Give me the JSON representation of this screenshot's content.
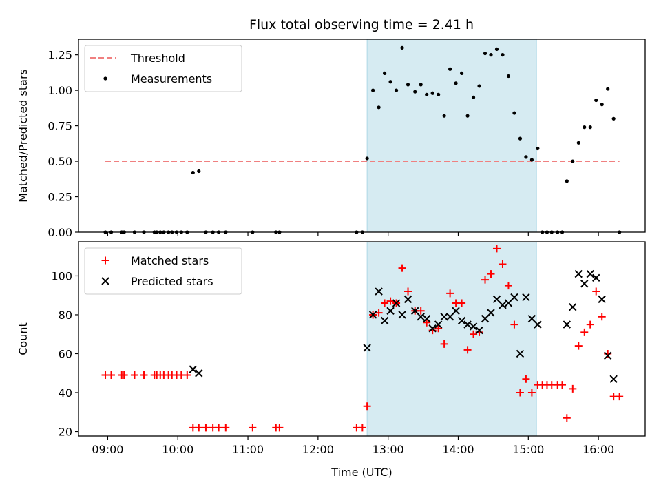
{
  "title": "Flux total observing time = 2.41 h",
  "colors": {
    "threshold": "#f08080",
    "measurements": "#000000",
    "matched": "#ff0000",
    "predicted": "#000000",
    "span": "#add8e6"
  },
  "chart_data": [
    {
      "type": "scatter",
      "panel": "top",
      "ylabel": "Matched/Predicted stars",
      "xlim": [
        "08:35",
        "16:40"
      ],
      "ylim": [
        0,
        1.36
      ],
      "yticks": [
        "0.00",
        "0.25",
        "0.50",
        "0.75",
        "1.00",
        "1.25"
      ],
      "highlight_span": [
        "12:42",
        "15:07"
      ],
      "legend": {
        "placement": "upper-left",
        "entries": [
          "Threshold",
          "Measurements"
        ]
      },
      "threshold": {
        "name": "Threshold",
        "y": 0.5,
        "x_range": [
          "08:58",
          "16:18"
        ]
      },
      "series": [
        {
          "name": "Measurements",
          "points": [
            [
              "08:58",
              0
            ],
            [
              "09:03",
              0
            ],
            [
              "09:12",
              0
            ],
            [
              "09:14",
              0
            ],
            [
              "09:23",
              0
            ],
            [
              "09:31",
              0
            ],
            [
              "09:40",
              0
            ],
            [
              "09:42",
              0
            ],
            [
              "09:45",
              0
            ],
            [
              "09:48",
              0
            ],
            [
              "09:52",
              0
            ],
            [
              "09:55",
              0
            ],
            [
              "09:59",
              0
            ],
            [
              "10:03",
              0
            ],
            [
              "10:08",
              0
            ],
            [
              "10:13",
              0.42
            ],
            [
              "10:18",
              0.43
            ],
            [
              "10:24",
              0
            ],
            [
              "10:30",
              0
            ],
            [
              "10:35",
              0
            ],
            [
              "10:41",
              0
            ],
            [
              "11:04",
              0
            ],
            [
              "11:24",
              0
            ],
            [
              "11:27",
              0
            ],
            [
              "12:33",
              0
            ],
            [
              "12:38",
              0
            ],
            [
              "12:42",
              0.52
            ],
            [
              "12:47",
              1.0
            ],
            [
              "12:52",
              0.88
            ],
            [
              "12:57",
              1.12
            ],
            [
              "13:02",
              1.06
            ],
            [
              "13:07",
              1.0
            ],
            [
              "13:12",
              1.3
            ],
            [
              "13:17",
              1.04
            ],
            [
              "13:23",
              0.99
            ],
            [
              "13:28",
              1.04
            ],
            [
              "13:33",
              0.97
            ],
            [
              "13:38",
              0.98
            ],
            [
              "13:43",
              0.97
            ],
            [
              "13:48",
              0.82
            ],
            [
              "13:53",
              1.15
            ],
            [
              "13:58",
              1.05
            ],
            [
              "14:03",
              1.12
            ],
            [
              "14:08",
              0.82
            ],
            [
              "14:13",
              0.95
            ],
            [
              "14:18",
              1.03
            ],
            [
              "14:23",
              1.26
            ],
            [
              "14:28",
              1.25
            ],
            [
              "14:33",
              1.29
            ],
            [
              "14:38",
              1.25
            ],
            [
              "14:43",
              1.1
            ],
            [
              "14:48",
              0.84
            ],
            [
              "14:53",
              0.66
            ],
            [
              "14:58",
              0.53
            ],
            [
              "15:03",
              0.51
            ],
            [
              "15:08",
              0.59
            ],
            [
              "15:12",
              0
            ],
            [
              "15:16",
              0
            ],
            [
              "15:20",
              0
            ],
            [
              "15:25",
              0
            ],
            [
              "15:29",
              0
            ],
            [
              "15:33",
              0.36
            ],
            [
              "15:38",
              0.5
            ],
            [
              "15:43",
              0.63
            ],
            [
              "15:48",
              0.74
            ],
            [
              "15:53",
              0.74
            ],
            [
              "15:58",
              0.93
            ],
            [
              "16:03",
              0.9
            ],
            [
              "16:08",
              1.01
            ],
            [
              "16:13",
              0.8
            ],
            [
              "16:18",
              0
            ]
          ]
        }
      ]
    },
    {
      "type": "scatter",
      "panel": "bottom",
      "xlabel": "Time (UTC)",
      "ylabel": "Count",
      "xlim": [
        "08:35",
        "16:40"
      ],
      "ylim": [
        17.7,
        117.5
      ],
      "xticks": [
        "09:00",
        "10:00",
        "11:00",
        "12:00",
        "13:00",
        "14:00",
        "15:00",
        "16:00"
      ],
      "yticks": [
        "20",
        "40",
        "60",
        "80",
        "100"
      ],
      "highlight_span": [
        "12:42",
        "15:07"
      ],
      "legend": {
        "placement": "upper-left",
        "entries": [
          "Matched stars",
          "Predicted stars"
        ]
      },
      "series": [
        {
          "name": "Matched stars",
          "marker": "+",
          "points": [
            [
              "08:58",
              49
            ],
            [
              "09:03",
              49
            ],
            [
              "09:12",
              49
            ],
            [
              "09:14",
              49
            ],
            [
              "09:23",
              49
            ],
            [
              "09:31",
              49
            ],
            [
              "09:40",
              49
            ],
            [
              "09:42",
              49
            ],
            [
              "09:45",
              49
            ],
            [
              "09:48",
              49
            ],
            [
              "09:52",
              49
            ],
            [
              "09:55",
              49
            ],
            [
              "09:59",
              49
            ],
            [
              "10:03",
              49
            ],
            [
              "10:08",
              49
            ],
            [
              "10:13",
              22
            ],
            [
              "10:18",
              22
            ],
            [
              "10:24",
              22
            ],
            [
              "10:30",
              22
            ],
            [
              "10:35",
              22
            ],
            [
              "10:41",
              22
            ],
            [
              "11:04",
              22
            ],
            [
              "11:24",
              22
            ],
            [
              "11:27",
              22
            ],
            [
              "12:33",
              22
            ],
            [
              "12:38",
              22
            ],
            [
              "12:42",
              33
            ],
            [
              "12:47",
              80
            ],
            [
              "12:52",
              81
            ],
            [
              "12:57",
              86
            ],
            [
              "13:02",
              87
            ],
            [
              "13:07",
              86
            ],
            [
              "13:12",
              104
            ],
            [
              "13:17",
              92
            ],
            [
              "13:23",
              82
            ],
            [
              "13:28",
              82
            ],
            [
              "13:33",
              76
            ],
            [
              "13:38",
              72
            ],
            [
              "13:43",
              73
            ],
            [
              "13:48",
              65
            ],
            [
              "13:53",
              91
            ],
            [
              "13:58",
              86
            ],
            [
              "14:03",
              86
            ],
            [
              "14:08",
              62
            ],
            [
              "14:13",
              70
            ],
            [
              "14:18",
              71
            ],
            [
              "14:23",
              98
            ],
            [
              "14:28",
              101
            ],
            [
              "14:33",
              114
            ],
            [
              "14:38",
              106
            ],
            [
              "14:43",
              95
            ],
            [
              "14:48",
              75
            ],
            [
              "14:53",
              40
            ],
            [
              "14:58",
              47
            ],
            [
              "15:03",
              40
            ],
            [
              "15:08",
              44
            ],
            [
              "15:12",
              44
            ],
            [
              "15:16",
              44
            ],
            [
              "15:20",
              44
            ],
            [
              "15:25",
              44
            ],
            [
              "15:29",
              44
            ],
            [
              "15:33",
              27
            ],
            [
              "15:38",
              42
            ],
            [
              "15:43",
              64
            ],
            [
              "15:48",
              71
            ],
            [
              "15:53",
              75
            ],
            [
              "15:58",
              92
            ],
            [
              "16:03",
              79
            ],
            [
              "16:08",
              60
            ],
            [
              "16:13",
              38
            ],
            [
              "16:18",
              38
            ]
          ]
        },
        {
          "name": "Predicted stars",
          "marker": "x",
          "points": [
            [
              "10:13",
              52
            ],
            [
              "10:18",
              50
            ],
            [
              "12:42",
              63
            ],
            [
              "12:47",
              80
            ],
            [
              "12:52",
              92
            ],
            [
              "12:57",
              77
            ],
            [
              "13:02",
              82
            ],
            [
              "13:07",
              86
            ],
            [
              "13:12",
              80
            ],
            [
              "13:17",
              88
            ],
            [
              "13:23",
              82
            ],
            [
              "13:28",
              79
            ],
            [
              "13:33",
              78
            ],
            [
              "13:38",
              73
            ],
            [
              "13:43",
              75
            ],
            [
              "13:48",
              79
            ],
            [
              "13:53",
              79
            ],
            [
              "13:58",
              82
            ],
            [
              "14:03",
              77
            ],
            [
              "14:08",
              75
            ],
            [
              "14:13",
              74
            ],
            [
              "14:18",
              72
            ],
            [
              "14:23",
              78
            ],
            [
              "14:28",
              81
            ],
            [
              "14:33",
              88
            ],
            [
              "14:38",
              85
            ],
            [
              "14:43",
              86
            ],
            [
              "14:48",
              89
            ],
            [
              "14:53",
              60
            ],
            [
              "14:58",
              89
            ],
            [
              "15:03",
              78
            ],
            [
              "15:08",
              75
            ],
            [
              "15:33",
              75
            ],
            [
              "15:38",
              84
            ],
            [
              "15:43",
              101
            ],
            [
              "15:48",
              96
            ],
            [
              "15:53",
              101
            ],
            [
              "15:58",
              99
            ],
            [
              "16:03",
              88
            ],
            [
              "16:08",
              59
            ],
            [
              "16:13",
              47
            ]
          ]
        }
      ]
    }
  ]
}
